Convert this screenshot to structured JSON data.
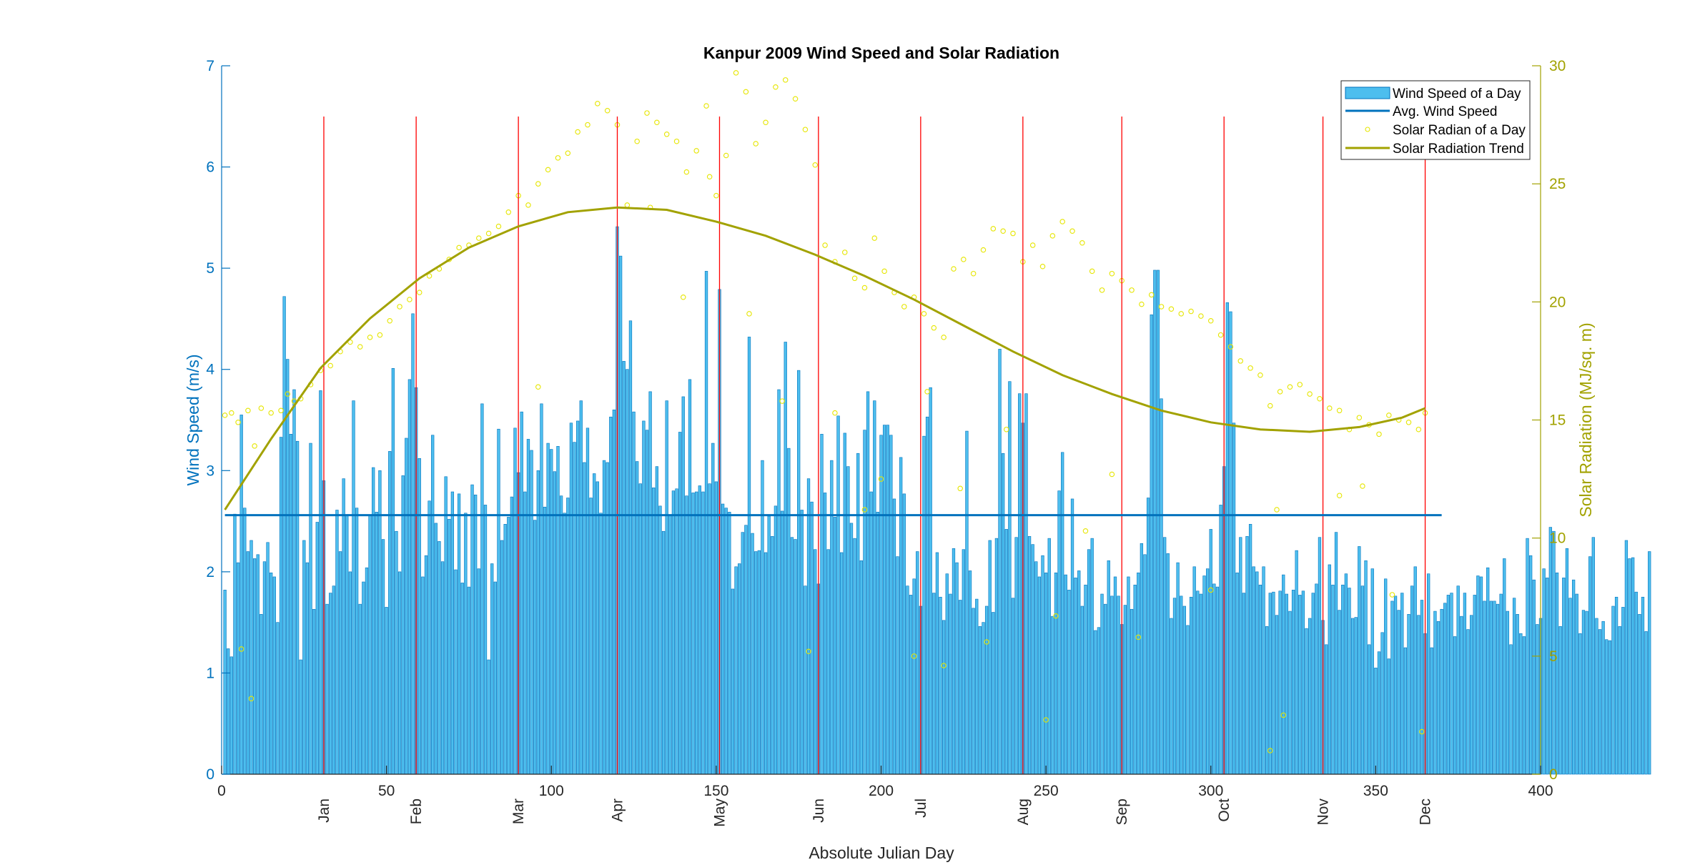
{
  "chart_data": {
    "type": "bar",
    "title": "Kanpur 2009 Wind Speed and Solar Radiation",
    "xlabel": "Absolute Julian Day",
    "ylabel_left": "Wind Speed (m/s)",
    "ylabel_right": "Solar Radiation (MJ/sq. m)",
    "xlim": [
      0,
      400
    ],
    "ylim_left": [
      0,
      7
    ],
    "ylim_right": [
      0,
      30
    ],
    "x_ticks": [
      "0",
      "50",
      "100",
      "150",
      "200",
      "250",
      "300",
      "350",
      "400"
    ],
    "y_left_ticks": [
      "0",
      "1",
      "2",
      "3",
      "4",
      "5",
      "6",
      "7"
    ],
    "y_right_ticks": [
      "0",
      "5",
      "10",
      "15",
      "20",
      "25",
      "30"
    ],
    "month_markers": [
      {
        "label": "Jan",
        "day": 31
      },
      {
        "label": "Feb",
        "day": 59
      },
      {
        "label": "Mar",
        "day": 90
      },
      {
        "label": "Apr",
        "day": 120
      },
      {
        "label": "May",
        "day": 151
      },
      {
        "label": "Jun",
        "day": 181
      },
      {
        "label": "Jul",
        "day": 212
      },
      {
        "label": "Aug",
        "day": 243
      },
      {
        "label": "Sep",
        "day": 273
      },
      {
        "label": "Oct",
        "day": 304
      },
      {
        "label": "Nov",
        "day": 334
      },
      {
        "label": "Dec",
        "day": 365
      }
    ],
    "legend": [
      "Wind Speed of a Day",
      "Avg. Wind Speed",
      "Solar Radian of a Day",
      "Solar Radiation Trend"
    ],
    "legend_position": "top-right",
    "avg_wind_speed": 2.56,
    "wind_speed": [
      1.82,
      1.24,
      1.16,
      2.57,
      2.09,
      3.55,
      2.63,
      2.2,
      2.31,
      2.13,
      2.17,
      1.58,
      2.1,
      2.29,
      1.99,
      1.95,
      1.5,
      3.33,
      4.72,
      4.1,
      3.36,
      3.8,
      3.29,
      1.13,
      2.31,
      2.09,
      3.27,
      1.63,
      2.49,
      3.79,
      2.9,
      1.68,
      1.79,
      1.86,
      2.61,
      2.2,
      2.92,
      2.56,
      2.0,
      3.69,
      2.63,
      1.68,
      1.9,
      2.04,
      2.56,
      3.03,
      2.59,
      3.0,
      2.32,
      1.65,
      3.19,
      4.01,
      2.4,
      2.0,
      2.95,
      3.32,
      3.9,
      4.55,
      3.82,
      3.12,
      1.95,
      2.16,
      2.7,
      3.35,
      2.48,
      2.3,
      2.1,
      2.94,
      2.52,
      2.79,
      2.02,
      2.77,
      1.89,
      2.58,
      1.85,
      2.86,
      2.76,
      2.03,
      3.66,
      2.66,
      1.13,
      2.08,
      1.9,
      3.41,
      2.31,
      2.47,
      2.54,
      2.74,
      3.42,
      2.98,
      3.58,
      2.79,
      3.31,
      3.2,
      2.51,
      3.0,
      3.66,
      2.64,
      3.27,
      3.21,
      2.99,
      3.24,
      2.75,
      2.58,
      2.73,
      3.47,
      3.28,
      3.49,
      3.69,
      3.08,
      3.42,
      2.73,
      2.97,
      2.89,
      2.58,
      3.1,
      3.08,
      3.53,
      3.6,
      5.41,
      5.12,
      4.08,
      4.0,
      4.48,
      3.58,
      3.09,
      2.87,
      3.49,
      3.4,
      3.78,
      2.83,
      3.04,
      2.65,
      2.4,
      3.69,
      2.56,
      2.8,
      2.82,
      3.38,
      3.73,
      2.75,
      3.9,
      2.78,
      2.79,
      2.85,
      2.79,
      4.97,
      2.87,
      3.27,
      2.89,
      4.79,
      2.67,
      2.63,
      2.59,
      1.83,
      2.05,
      2.08,
      2.39,
      2.46,
      4.32,
      2.38,
      2.2,
      2.21,
      3.1,
      2.19,
      2.55,
      2.35,
      2.65,
      3.8,
      2.6,
      4.27,
      3.22,
      2.34,
      2.32,
      3.99,
      2.61,
      1.86,
      2.92,
      2.69,
      2.22,
      1.88,
      3.36,
      2.78,
      2.22,
      3.1,
      2.54,
      3.54,
      2.19,
      3.37,
      3.04,
      2.48,
      2.33,
      3.17,
      2.11,
      3.4,
      3.78,
      2.79,
      3.69,
      2.59,
      3.35,
      3.45,
      3.45,
      3.35,
      2.72,
      2.15,
      3.13,
      2.77,
      1.86,
      1.77,
      1.93,
      2.2,
      1.66,
      3.34,
      3.53,
      3.82,
      1.79,
      2.19,
      1.75,
      1.52,
      1.98,
      1.78,
      2.23,
      2.09,
      1.72,
      2.22,
      3.39,
      2.01,
      1.64,
      1.73,
      1.46,
      1.5,
      1.66,
      2.31,
      1.6,
      2.33,
      4.2,
      3.17,
      2.42,
      3.88,
      1.74,
      2.34,
      3.76,
      3.47,
      3.76,
      2.35,
      2.27,
      2.1,
      1.95,
      2.16,
      1.99,
      2.33,
      1.56,
      1.99,
      2.8,
      3.18,
      1.97,
      1.82,
      2.72,
      1.94,
      2.01,
      1.66,
      1.87,
      2.22,
      2.33,
      1.42,
      1.45,
      1.78,
      1.68,
      2.11,
      1.76,
      1.95,
      1.76,
      1.48,
      1.67,
      1.95,
      1.63,
      1.87,
      1.99,
      2.28,
      2.17,
      2.73,
      4.54,
      4.98,
      4.98,
      3.71,
      2.34,
      2.18,
      1.54,
      1.74,
      2.09,
      1.76,
      1.66,
      1.47,
      1.75,
      2.05,
      1.81,
      1.78,
      1.96,
      2.03,
      2.42,
      1.88,
      1.85,
      2.66,
      3.04,
      4.66,
      4.57,
      3.47,
      1.99,
      2.34,
      1.79,
      2.35,
      2.47,
      2.05,
      2.0,
      1.87,
      2.05,
      1.46,
      1.79,
      1.8,
      1.57,
      1.81,
      1.97,
      1.78,
      1.61,
      1.82,
      2.21,
      1.77,
      1.81,
      1.44,
      1.54,
      1.79,
      1.88,
      2.34,
      1.52,
      1.28,
      2.07,
      1.87,
      2.39,
      1.62,
      1.87,
      1.98,
      1.84,
      1.54,
      1.55,
      2.25,
      1.86,
      2.11,
      1.28,
      2.03,
      1.05,
      1.21,
      1.4,
      1.93,
      1.14,
      1.71,
      1.76,
      1.62,
      1.79,
      1.25,
      1.58,
      1.86,
      2.05,
      1.57,
      1.72,
      1.39,
      1.98,
      1.25,
      1.61,
      1.51,
      1.63,
      1.69,
      1.77,
      1.79,
      1.36,
      1.86,
      1.56,
      1.79,
      1.43,
      1.57,
      1.77,
      1.96,
      1.95,
      1.71,
      2.04,
      1.71,
      1.71,
      1.68,
      1.78,
      2.13,
      1.61,
      1.28,
      1.74,
      1.58,
      1.39,
      1.36,
      2.33,
      2.16,
      1.92,
      1.48,
      1.54,
      2.03,
      1.94,
      2.44,
      2.4,
      1.99,
      1.46,
      1.94,
      2.23,
      1.74,
      1.92,
      1.78,
      1.39,
      1.62,
      1.61,
      2.15,
      2.34,
      1.54,
      1.43,
      1.51,
      1.33,
      1.32,
      1.66,
      1.75,
      1.46,
      1.65,
      2.31,
      2.13,
      2.14,
      1.8,
      1.58,
      1.75,
      1.41,
      2.2
    ],
    "solar_radiation_trend": [
      {
        "x": 1,
        "y": 11.2
      },
      {
        "x": 15,
        "y": 14.2
      },
      {
        "x": 30,
        "y": 17.2
      },
      {
        "x": 45,
        "y": 19.3
      },
      {
        "x": 60,
        "y": 21.0
      },
      {
        "x": 75,
        "y": 22.3
      },
      {
        "x": 90,
        "y": 23.2
      },
      {
        "x": 105,
        "y": 23.8
      },
      {
        "x": 120,
        "y": 24.0
      },
      {
        "x": 135,
        "y": 23.9
      },
      {
        "x": 150,
        "y": 23.4
      },
      {
        "x": 165,
        "y": 22.8
      },
      {
        "x": 180,
        "y": 22.0
      },
      {
        "x": 195,
        "y": 21.1
      },
      {
        "x": 210,
        "y": 20.1
      },
      {
        "x": 225,
        "y": 19.0
      },
      {
        "x": 240,
        "y": 17.9
      },
      {
        "x": 255,
        "y": 16.9
      },
      {
        "x": 270,
        "y": 16.1
      },
      {
        "x": 285,
        "y": 15.4
      },
      {
        "x": 300,
        "y": 14.9
      },
      {
        "x": 315,
        "y": 14.6
      },
      {
        "x": 330,
        "y": 14.5
      },
      {
        "x": 345,
        "y": 14.7
      },
      {
        "x": 358,
        "y": 15.1
      },
      {
        "x": 365,
        "y": 15.5
      }
    ],
    "solar_radiation": [
      {
        "x": 1,
        "y": 15.2
      },
      {
        "x": 3,
        "y": 15.3
      },
      {
        "x": 5,
        "y": 14.9
      },
      {
        "x": 8,
        "y": 15.4
      },
      {
        "x": 10,
        "y": 13.9
      },
      {
        "x": 12,
        "y": 15.5
      },
      {
        "x": 15,
        "y": 15.3
      },
      {
        "x": 18,
        "y": 15.4
      },
      {
        "x": 20,
        "y": 16.1
      },
      {
        "x": 22,
        "y": 15.8
      },
      {
        "x": 24,
        "y": 15.9
      },
      {
        "x": 27,
        "y": 16.5
      },
      {
        "x": 30,
        "y": 17.1
      },
      {
        "x": 33,
        "y": 17.3
      },
      {
        "x": 36,
        "y": 17.9
      },
      {
        "x": 39,
        "y": 18.3
      },
      {
        "x": 42,
        "y": 18.1
      },
      {
        "x": 45,
        "y": 18.5
      },
      {
        "x": 48,
        "y": 18.6
      },
      {
        "x": 51,
        "y": 19.2
      },
      {
        "x": 54,
        "y": 19.8
      },
      {
        "x": 57,
        "y": 20.1
      },
      {
        "x": 60,
        "y": 20.4
      },
      {
        "x": 63,
        "y": 21.1
      },
      {
        "x": 66,
        "y": 21.4
      },
      {
        "x": 69,
        "y": 21.8
      },
      {
        "x": 72,
        "y": 22.3
      },
      {
        "x": 75,
        "y": 22.4
      },
      {
        "x": 78,
        "y": 22.7
      },
      {
        "x": 81,
        "y": 22.9
      },
      {
        "x": 84,
        "y": 23.2
      },
      {
        "x": 87,
        "y": 23.8
      },
      {
        "x": 90,
        "y": 24.5
      },
      {
        "x": 93,
        "y": 24.1
      },
      {
        "x": 96,
        "y": 25.0
      },
      {
        "x": 99,
        "y": 25.6
      },
      {
        "x": 102,
        "y": 26.1
      },
      {
        "x": 105,
        "y": 26.3
      },
      {
        "x": 108,
        "y": 27.2
      },
      {
        "x": 111,
        "y": 27.5
      },
      {
        "x": 114,
        "y": 28.4
      },
      {
        "x": 117,
        "y": 28.1
      },
      {
        "x": 120,
        "y": 27.5
      },
      {
        "x": 123,
        "y": 24.1
      },
      {
        "x": 126,
        "y": 26.8
      },
      {
        "x": 129,
        "y": 28.0
      },
      {
        "x": 132,
        "y": 27.6
      },
      {
        "x": 135,
        "y": 27.1
      },
      {
        "x": 138,
        "y": 26.8
      },
      {
        "x": 141,
        "y": 25.5
      },
      {
        "x": 144,
        "y": 26.4
      },
      {
        "x": 147,
        "y": 28.3
      },
      {
        "x": 150,
        "y": 24.5
      },
      {
        "x": 153,
        "y": 26.2
      },
      {
        "x": 156,
        "y": 29.7
      },
      {
        "x": 159,
        "y": 28.9
      },
      {
        "x": 162,
        "y": 26.7
      },
      {
        "x": 165,
        "y": 27.6
      },
      {
        "x": 168,
        "y": 29.1
      },
      {
        "x": 171,
        "y": 29.4
      },
      {
        "x": 174,
        "y": 28.6
      },
      {
        "x": 177,
        "y": 27.3
      },
      {
        "x": 180,
        "y": 25.8
      },
      {
        "x": 183,
        "y": 22.4
      },
      {
        "x": 186,
        "y": 21.7
      },
      {
        "x": 189,
        "y": 22.1
      },
      {
        "x": 192,
        "y": 21.0
      },
      {
        "x": 195,
        "y": 20.6
      },
      {
        "x": 198,
        "y": 22.7
      },
      {
        "x": 201,
        "y": 21.3
      },
      {
        "x": 204,
        "y": 20.4
      },
      {
        "x": 207,
        "y": 19.8
      },
      {
        "x": 210,
        "y": 20.2
      },
      {
        "x": 213,
        "y": 19.5
      },
      {
        "x": 216,
        "y": 18.9
      },
      {
        "x": 219,
        "y": 18.5
      },
      {
        "x": 222,
        "y": 21.4
      },
      {
        "x": 225,
        "y": 21.8
      },
      {
        "x": 228,
        "y": 21.2
      },
      {
        "x": 231,
        "y": 22.2
      },
      {
        "x": 234,
        "y": 23.1
      },
      {
        "x": 237,
        "y": 23.0
      },
      {
        "x": 240,
        "y": 22.9
      },
      {
        "x": 243,
        "y": 21.7
      },
      {
        "x": 246,
        "y": 22.4
      },
      {
        "x": 249,
        "y": 21.5
      },
      {
        "x": 252,
        "y": 22.8
      },
      {
        "x": 255,
        "y": 23.4
      },
      {
        "x": 258,
        "y": 23.0
      },
      {
        "x": 261,
        "y": 22.5
      },
      {
        "x": 264,
        "y": 21.3
      },
      {
        "x": 267,
        "y": 20.5
      },
      {
        "x": 270,
        "y": 21.2
      },
      {
        "x": 273,
        "y": 20.9
      },
      {
        "x": 276,
        "y": 20.5
      },
      {
        "x": 279,
        "y": 19.9
      },
      {
        "x": 282,
        "y": 20.3
      },
      {
        "x": 285,
        "y": 19.8
      },
      {
        "x": 288,
        "y": 19.7
      },
      {
        "x": 291,
        "y": 19.5
      },
      {
        "x": 294,
        "y": 19.6
      },
      {
        "x": 297,
        "y": 19.4
      },
      {
        "x": 300,
        "y": 19.2
      },
      {
        "x": 303,
        "y": 18.6
      },
      {
        "x": 306,
        "y": 18.1
      },
      {
        "x": 309,
        "y": 17.5
      },
      {
        "x": 312,
        "y": 17.2
      },
      {
        "x": 315,
        "y": 16.9
      },
      {
        "x": 318,
        "y": 15.6
      },
      {
        "x": 321,
        "y": 16.2
      },
      {
        "x": 324,
        "y": 16.4
      },
      {
        "x": 327,
        "y": 16.5
      },
      {
        "x": 330,
        "y": 16.1
      },
      {
        "x": 333,
        "y": 15.9
      },
      {
        "x": 336,
        "y": 15.5
      },
      {
        "x": 339,
        "y": 15.4
      },
      {
        "x": 342,
        "y": 14.6
      },
      {
        "x": 345,
        "y": 15.1
      },
      {
        "x": 348,
        "y": 14.8
      },
      {
        "x": 351,
        "y": 14.4
      },
      {
        "x": 354,
        "y": 15.2
      },
      {
        "x": 357,
        "y": 15.0
      },
      {
        "x": 360,
        "y": 14.9
      },
      {
        "x": 363,
        "y": 14.6
      },
      {
        "x": 365,
        "y": 15.3
      },
      {
        "x": 6,
        "y": 5.3
      },
      {
        "x": 9,
        "y": 3.2
      },
      {
        "x": 96,
        "y": 16.4
      },
      {
        "x": 130,
        "y": 24.0
      },
      {
        "x": 140,
        "y": 20.2
      },
      {
        "x": 148,
        "y": 25.3
      },
      {
        "x": 170,
        "y": 15.8
      },
      {
        "x": 178,
        "y": 5.2
      },
      {
        "x": 195,
        "y": 11.2
      },
      {
        "x": 210,
        "y": 5.0
      },
      {
        "x": 219,
        "y": 4.6
      },
      {
        "x": 224,
        "y": 12.1
      },
      {
        "x": 232,
        "y": 5.6
      },
      {
        "x": 238,
        "y": 14.6
      },
      {
        "x": 250,
        "y": 2.3
      },
      {
        "x": 253,
        "y": 6.7
      },
      {
        "x": 262,
        "y": 10.3
      },
      {
        "x": 270,
        "y": 12.7
      },
      {
        "x": 278,
        "y": 5.8
      },
      {
        "x": 300,
        "y": 7.8
      },
      {
        "x": 318,
        "y": 1.0
      },
      {
        "x": 320,
        "y": 11.2
      },
      {
        "x": 322,
        "y": 2.5
      },
      {
        "x": 339,
        "y": 11.8
      },
      {
        "x": 346,
        "y": 12.2
      },
      {
        "x": 355,
        "y": 7.6
      },
      {
        "x": 364,
        "y": 1.8
      },
      {
        "x": 160,
        "y": 19.5
      },
      {
        "x": 186,
        "y": 15.3
      },
      {
        "x": 200,
        "y": 12.5
      },
      {
        "x": 214,
        "y": 16.2
      }
    ],
    "colors": {
      "bars": "#4DBEEE",
      "bar_edge": "#0072BD",
      "avg_line": "#0072BD",
      "trend_line": "#A2A200",
      "points": "#FFFF00",
      "point_stroke": "#E6E600",
      "month_lines": "#FF0000",
      "left_axis": "#0072BD",
      "right_axis": "#A2A200"
    }
  }
}
